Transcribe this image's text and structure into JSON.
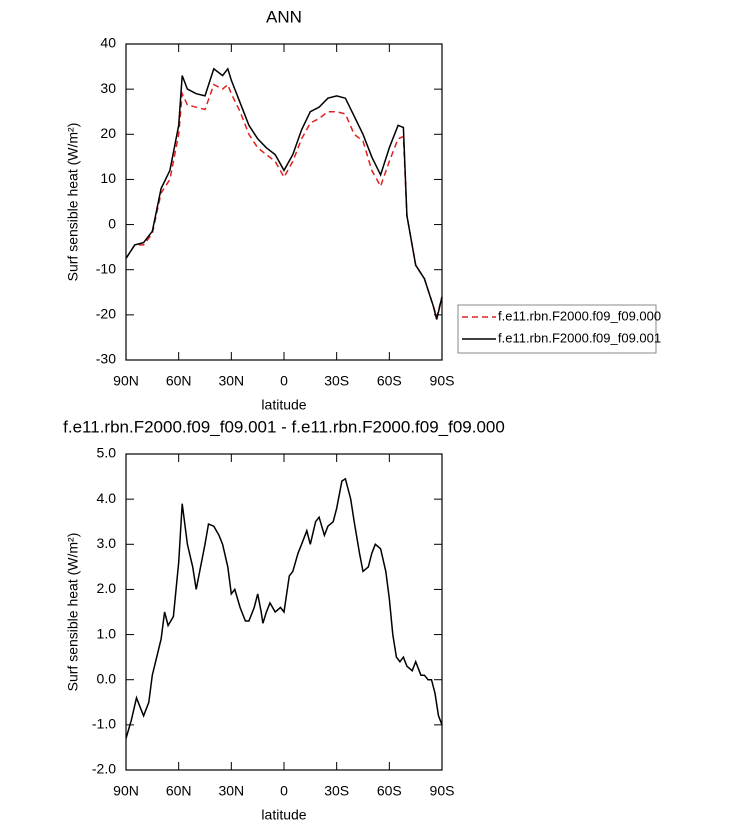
{
  "chart_data": [
    {
      "type": "line",
      "title": "ANN",
      "xlabel": "latitude",
      "ylabel": "Surf sensible heat (W/m²)",
      "x": [
        90,
        85,
        80,
        75,
        70,
        65,
        60,
        58,
        55,
        50,
        45,
        40,
        35,
        32,
        30,
        25,
        20,
        15,
        10,
        5,
        0,
        -5,
        -10,
        -15,
        -20,
        -25,
        -30,
        -35,
        -40,
        -45,
        -50,
        -55,
        -60,
        -65,
        -68,
        -70,
        -75,
        -80,
        -85,
        -87,
        -90
      ],
      "series": [
        {
          "name": "f.e11.rbn.F2000.f09_f09.000",
          "color": "#e02020",
          "line_style": "dashed",
          "values": [
            -7.5,
            -4.5,
            -4.5,
            -2,
            7,
            10,
            20,
            29,
            26.5,
            26,
            25.5,
            31,
            30,
            31,
            29,
            25,
            20,
            17,
            15.5,
            14,
            10.5,
            14,
            19,
            22.5,
            23.5,
            25,
            25,
            24.5,
            20,
            18.5,
            12,
            8.5,
            14,
            19,
            19.5,
            2,
            -9,
            -12,
            -18,
            -20.5,
            -16
          ]
        },
        {
          "name": "f.e11.rbn.F2000.f09_f09.001",
          "color": "#000000",
          "line_style": "solid",
          "values": [
            -7.5,
            -4.5,
            -4,
            -1.5,
            8,
            12,
            22,
            33,
            30,
            29,
            28.5,
            34.5,
            33,
            34.5,
            32,
            27,
            22,
            19,
            17,
            15.5,
            12,
            15.5,
            21,
            25,
            26,
            28,
            28.5,
            28,
            24,
            20,
            15,
            11,
            17,
            22,
            21.5,
            2,
            -9,
            -12,
            -18,
            -21,
            -16
          ]
        }
      ],
      "xlim": [
        90,
        -90
      ],
      "xticks": [
        {
          "value": 90,
          "label": "90N"
        },
        {
          "value": 60,
          "label": "60N"
        },
        {
          "value": 30,
          "label": "30N"
        },
        0,
        {
          "value": -30,
          "label": "30S"
        },
        {
          "value": -60,
          "label": "60S"
        },
        {
          "value": -90,
          "label": "90S"
        }
      ],
      "ylim": [
        -30,
        40
      ],
      "yticks": [
        -30,
        -20,
        -10,
        0,
        10,
        20,
        30,
        40
      ],
      "legend": "right"
    },
    {
      "type": "line",
      "title": "f.e11.rbn.F2000.f09_f09.001 - f.e11.rbn.F2000.f09_f09.000",
      "xlabel": "latitude",
      "ylabel": "Surf sensible heat (W/m²)",
      "x": [
        90,
        87,
        84,
        82,
        80,
        77,
        75,
        70,
        68,
        66,
        63,
        60,
        58,
        55,
        52,
        50,
        48,
        45,
        43,
        40,
        37,
        35,
        32,
        30,
        28,
        25,
        22,
        20,
        17,
        15,
        13,
        12,
        10,
        8,
        5,
        2,
        0,
        -3,
        -5,
        -8,
        -10,
        -13,
        -15,
        -18,
        -20,
        -23,
        -25,
        -28,
        -30,
        -33,
        -35,
        -38,
        -40,
        -43,
        -45,
        -48,
        -50,
        -52,
        -55,
        -58,
        -60,
        -62,
        -64,
        -66,
        -68,
        -70,
        -73,
        -75,
        -78,
        -80,
        -82,
        -84,
        -86,
        -88,
        -90
      ],
      "series": [
        {
          "color": "#000000",
          "line_style": "solid",
          "values": [
            -1.3,
            -0.9,
            -0.4,
            -0.6,
            -0.8,
            -0.5,
            0.1,
            0.9,
            1.5,
            1.2,
            1.4,
            2.6,
            3.9,
            3.0,
            2.5,
            2.0,
            2.4,
            3.0,
            3.45,
            3.4,
            3.2,
            3.0,
            2.5,
            1.9,
            2.0,
            1.6,
            1.3,
            1.3,
            1.6,
            1.9,
            1.5,
            1.25,
            1.5,
            1.7,
            1.5,
            1.6,
            1.5,
            2.3,
            2.4,
            2.8,
            3.0,
            3.3,
            3.0,
            3.5,
            3.6,
            3.2,
            3.4,
            3.5,
            3.8,
            4.4,
            4.45,
            4.0,
            3.5,
            2.8,
            2.4,
            2.5,
            2.8,
            3.0,
            2.9,
            2.4,
            1.8,
            1.0,
            0.5,
            0.4,
            0.5,
            0.3,
            0.2,
            0.4,
            0.1,
            0.1,
            0.0,
            0.0,
            -0.3,
            -0.8,
            -1.0
          ]
        }
      ],
      "xlim": [
        90,
        -90
      ],
      "xticks": [
        {
          "value": 90,
          "label": "90N"
        },
        {
          "value": 60,
          "label": "60N"
        },
        {
          "value": 30,
          "label": "30N"
        },
        0,
        {
          "value": -30,
          "label": "30S"
        },
        {
          "value": -60,
          "label": "60S"
        },
        {
          "value": -90,
          "label": "90S"
        }
      ],
      "ylim": [
        -2,
        5
      ],
      "yticks": [
        {
          "value": -2,
          "label": "-2.0"
        },
        {
          "value": -1,
          "label": "-1.0"
        },
        {
          "value": 0,
          "label": "0.0"
        },
        {
          "value": 1,
          "label": "1.0"
        },
        {
          "value": 2,
          "label": "2.0"
        },
        {
          "value": 3,
          "label": "3.0"
        },
        {
          "value": 4,
          "label": "4.0"
        },
        {
          "value": 5,
          "label": "5.0"
        }
      ]
    }
  ]
}
